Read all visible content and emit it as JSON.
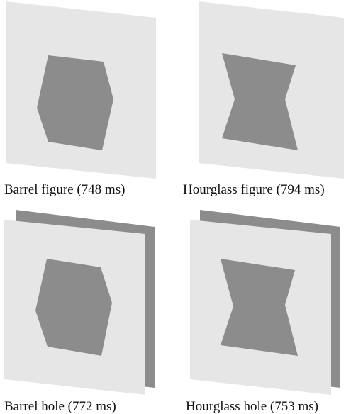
{
  "colors": {
    "background": "#ffffff",
    "panel": "#e6e6e6",
    "shape": "#8c8c8c",
    "back_panel": "#8c8c8c"
  },
  "figure": {
    "panels": [
      {
        "id": "barrel-figure",
        "shape": "barrel",
        "has_back_panel": false,
        "caption": "Barrel figure (748 ms)"
      },
      {
        "id": "hourglass-figure",
        "shape": "hourglass",
        "has_back_panel": false,
        "caption": "Hourglass figure (794 ms)"
      },
      {
        "id": "barrel-hole",
        "shape": "barrel",
        "has_back_panel": true,
        "caption": "Barrel hole (772 ms)"
      },
      {
        "id": "hourglass-hole",
        "shape": "hourglass",
        "has_back_panel": true,
        "caption": "Hourglass hole (753 ms)"
      }
    ]
  }
}
